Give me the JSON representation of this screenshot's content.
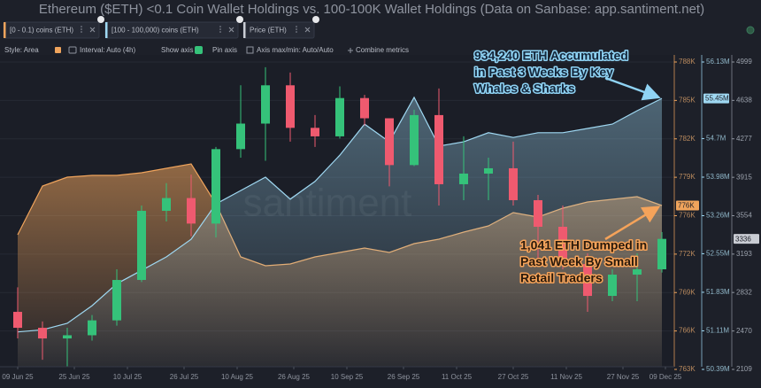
{
  "title": "Ethereum ($ETH) <0.1 Coin Wallet Holdings vs. 100-100K Wallet Holdings (Data on Sanbase: app.santiment.net)",
  "toolbar": {
    "settings": [
      "Style: Area",
      "Interval: Auto (4h)",
      "Show axis",
      "Pin axis",
      "Axis max/min: Auto/Auto",
      "Combine metrics"
    ]
  },
  "chart_data": {
    "type": "area",
    "watermark": "santiment",
    "grid": true,
    "x": [
      "2025-06-09",
      "2025-06-16",
      "2025-06-23",
      "2025-06-30",
      "2025-07-07",
      "2025-07-14",
      "2025-07-21",
      "2025-07-28",
      "2025-08-04",
      "2025-08-11",
      "2025-08-18",
      "2025-08-25",
      "2025-09-01",
      "2025-09-08",
      "2025-09-15",
      "2025-09-22",
      "2025-09-29",
      "2025-10-06",
      "2025-10-13",
      "2025-10-20",
      "2025-10-27",
      "2025-11-03",
      "2025-11-10",
      "2025-11-17",
      "2025-11-24",
      "2025-12-01",
      "2025-12-08"
    ],
    "xlim": [
      "2025-06-04",
      "2025-12-11"
    ],
    "xticks": [
      {
        "value": "2025-06-09",
        "label": "09 Jun 25"
      },
      {
        "value": "2025-06-25",
        "label": "25 Jun 25"
      },
      {
        "value": "2025-07-10",
        "label": "10 Jul 25"
      },
      {
        "value": "2025-07-26",
        "label": "26 Jul 25"
      },
      {
        "value": "2025-08-10",
        "label": "10 Aug 25"
      },
      {
        "value": "2025-08-26",
        "label": "26 Aug 25"
      },
      {
        "value": "2025-09-10",
        "label": "10 Sep 25"
      },
      {
        "value": "2025-09-26",
        "label": "26 Sep 25"
      },
      {
        "value": "2025-10-11",
        "label": "11 Oct 25"
      },
      {
        "value": "2025-10-27",
        "label": "27 Oct 25"
      },
      {
        "value": "2025-11-11",
        "label": "11 Nov 25"
      },
      {
        "value": "2025-11-27",
        "label": "27 Nov 25"
      },
      {
        "value": "2025-12-09",
        "label": "09 Dec 25"
      }
    ],
    "ylim": [
      763000,
      788000
    ],
    "yticks": [
      {
        "value": 763000,
        "label": "763K"
      },
      {
        "value": 766125,
        "label": "766K"
      },
      {
        "value": 769250,
        "label": "769K"
      },
      {
        "value": 772375,
        "label": "772K"
      },
      {
        "value": 775500,
        "label": "776K"
      },
      {
        "value": 778625,
        "label": "779K"
      },
      {
        "value": 781750,
        "label": "782K"
      },
      {
        "value": 784875,
        "label": "785K"
      },
      {
        "value": 788000,
        "label": "788K"
      }
    ],
    "y2lim": [
      50390000,
      56130000
    ],
    "y2ticks": [
      {
        "value": 50390000,
        "label": "50.39M"
      },
      {
        "value": 51110000,
        "label": "51.11M"
      },
      {
        "value": 51830000,
        "label": "51.83M"
      },
      {
        "value": 52550000,
        "label": "52.55M"
      },
      {
        "value": 53260000,
        "label": "53.26M"
      },
      {
        "value": 53980000,
        "label": "53.98M"
      },
      {
        "value": 54700000,
        "label": "54.7M"
      },
      {
        "value": 56130000,
        "label": "56.13M"
      }
    ],
    "y3lim": [
      2109,
      4999
    ],
    "y3ticks": [
      2109,
      2470,
      2832,
      3193,
      3554,
      3915,
      4277,
      4638,
      4999
    ],
    "series": [
      {
        "name": "[0 - 0.1) coins (ETH)",
        "color": "#f0a45c",
        "axis": "y",
        "values": [
          773950,
          777914,
          778635,
          778780,
          778780,
          778995,
          779355,
          779715,
          776473,
          772150,
          771430,
          771574,
          772150,
          772510,
          772871,
          772510,
          773231,
          773591,
          774167,
          774672,
          775753,
          775392,
          776113,
          776617,
          776833,
          777050,
          776329
        ],
        "value_labels": [
          null,
          null,
          null,
          null,
          null,
          null,
          null,
          null,
          null,
          null,
          null,
          null,
          null,
          null,
          null,
          null,
          null,
          null,
          null,
          null,
          null,
          null,
          null,
          null,
          null,
          null,
          "776K"
        ]
      },
      {
        "name": "[100 - 100,000) coins (ETH)",
        "color": "#9fd8f2",
        "axis": "y2",
        "values": [
          51090000,
          51130000,
          51250000,
          51580000,
          51990000,
          52240000,
          52490000,
          52820000,
          53480000,
          53730000,
          53980000,
          53570000,
          53900000,
          54390000,
          54970000,
          54640000,
          55470000,
          54560000,
          54640000,
          54810000,
          54720000,
          54810000,
          54810000,
          54890000,
          54970000,
          55220000,
          55450000
        ],
        "value_labels": [
          null,
          null,
          null,
          null,
          null,
          null,
          null,
          null,
          null,
          null,
          null,
          null,
          null,
          null,
          null,
          null,
          null,
          null,
          null,
          null,
          null,
          null,
          null,
          null,
          null,
          null,
          "55.45M"
        ]
      },
      {
        "name": "Price (ETH)",
        "type": "candlestick",
        "color": "#c9ccd3",
        "up_color": "#35c27a",
        "down_color": "#ef5a6f",
        "axis": "y3",
        "open": [
          2650,
          2500,
          2400,
          2430,
          2570,
          2950,
          3600,
          3720,
          3480,
          4180,
          4420,
          4780,
          4380,
          4300,
          4660,
          4470,
          4030,
          4500,
          3850,
          3950,
          4000,
          3700,
          3450,
          3100,
          2800,
          3000,
          3050
        ],
        "high": [
          2880,
          2560,
          2500,
          2620,
          3050,
          3650,
          3860,
          3940,
          4200,
          4780,
          4950,
          4900,
          4500,
          4770,
          4690,
          4470,
          4550,
          4750,
          4300,
          4100,
          4250,
          3750,
          3650,
          3200,
          3050,
          3200,
          3400
        ],
        "low": [
          2400,
          2200,
          2120,
          2380,
          2520,
          2930,
          3500,
          3360,
          3350,
          4100,
          4070,
          4250,
          4200,
          4280,
          4400,
          3830,
          4020,
          3650,
          3700,
          3700,
          3650,
          3100,
          3050,
          2650,
          2750,
          2750,
          3020
        ],
        "close": [
          2500,
          2400,
          2430,
          2570,
          2950,
          3600,
          3720,
          3480,
          4180,
          4420,
          4780,
          4380,
          4300,
          4660,
          4470,
          4030,
          4500,
          3850,
          3950,
          4000,
          3700,
          3450,
          3100,
          2800,
          3000,
          3050,
          3336
        ],
        "value_labels": [
          null,
          null,
          null,
          null,
          null,
          null,
          null,
          null,
          null,
          null,
          null,
          null,
          null,
          null,
          null,
          null,
          null,
          null,
          null,
          null,
          null,
          null,
          null,
          null,
          null,
          null,
          "3336"
        ]
      }
    ],
    "annotations": [
      {
        "lines": [
          "934,240 ETH Accumulated",
          "in Past 3 Weeks By Key",
          "Whales & Sharks"
        ],
        "color": "#8fd3f4"
      },
      {
        "lines": [
          "1,041 ETH Dumped in",
          "Past Week By Small",
          "Retail Traders"
        ],
        "color": "#f5a35a"
      }
    ]
  }
}
